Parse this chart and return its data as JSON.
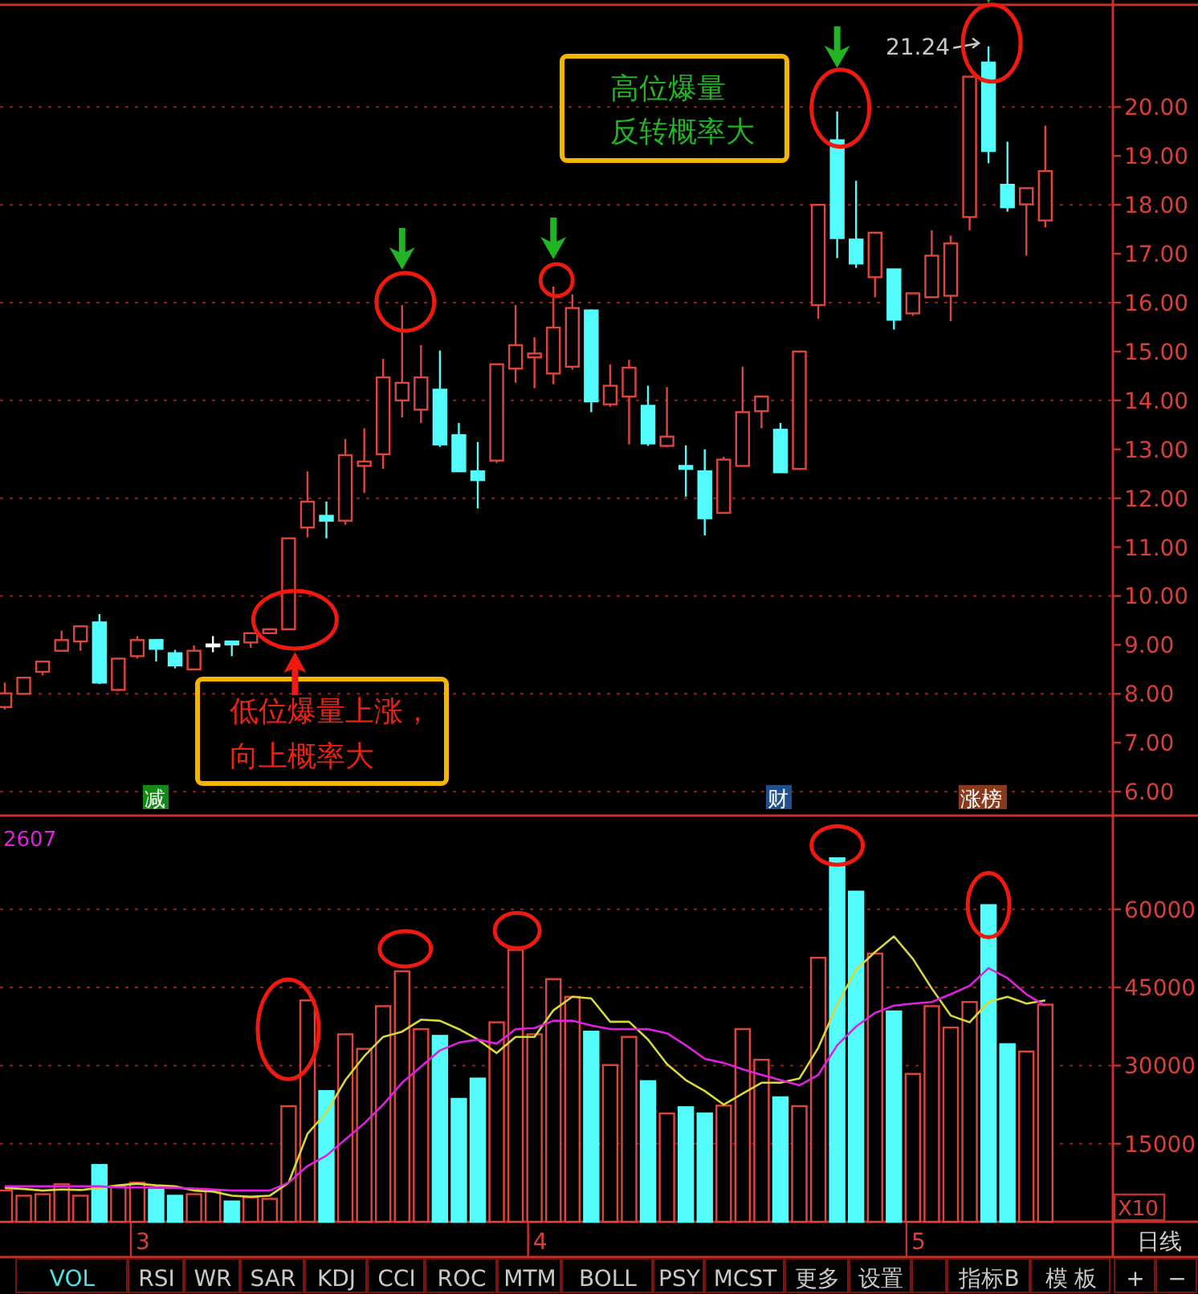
{
  "chart_data": [
    {
      "type": "candlestick",
      "categories": [
        null,
        null,
        null,
        null,
        null,
        null,
        null,
        null,
        null,
        null,
        null,
        null,
        null,
        null,
        null,
        null,
        null,
        null,
        null,
        null,
        null,
        null,
        null,
        null,
        null,
        null,
        null,
        null,
        null,
        null,
        null,
        null,
        null,
        null,
        null,
        null,
        null,
        null,
        null,
        null,
        null,
        null,
        null,
        null,
        null,
        null,
        null,
        null,
        null,
        null,
        null,
        null,
        null,
        null,
        null,
        null
      ],
      "ohlc": [
        [
          7.73,
          8.23,
          7.68,
          8.01
        ],
        [
          8.0,
          8.35,
          7.98,
          8.33
        ],
        [
          8.45,
          8.67,
          8.38,
          8.66
        ],
        [
          8.88,
          9.29,
          8.86,
          9.1
        ],
        [
          9.07,
          9.38,
          8.88,
          9.38
        ],
        [
          9.46,
          9.63,
          8.2,
          8.23
        ],
        [
          8.08,
          8.72,
          8.06,
          8.72
        ],
        [
          8.77,
          9.18,
          8.72,
          9.1
        ],
        [
          9.1,
          9.12,
          8.66,
          8.92
        ],
        [
          8.83,
          8.9,
          8.52,
          8.58
        ],
        [
          8.5,
          8.99,
          8.48,
          8.88
        ],
        [
          9.01,
          9.18,
          8.85,
          9.01
        ],
        [
          9.07,
          9.09,
          8.77,
          9.01
        ],
        [
          9.05,
          9.24,
          8.94,
          9.24
        ],
        [
          9.24,
          9.34,
          9.22,
          9.32
        ],
        [
          9.32,
          11.18,
          9.3,
          11.18
        ],
        [
          11.4,
          12.55,
          11.2,
          11.93
        ],
        [
          11.64,
          11.93,
          11.18,
          11.54
        ],
        [
          11.54,
          13.21,
          11.46,
          12.88
        ],
        [
          12.66,
          13.43,
          12.11,
          12.75
        ],
        [
          12.9,
          14.85,
          12.6,
          14.47
        ],
        [
          14.0,
          15.95,
          13.65,
          14.36
        ],
        [
          13.81,
          15.13,
          13.54,
          14.47
        ],
        [
          14.22,
          15.02,
          13.05,
          13.1
        ],
        [
          13.29,
          13.54,
          12.55,
          12.55
        ],
        [
          12.55,
          13.15,
          11.79,
          12.37
        ],
        [
          12.77,
          14.74,
          12.72,
          14.74
        ],
        [
          14.65,
          15.95,
          14.36,
          15.13
        ],
        [
          14.88,
          15.29,
          14.25,
          14.96
        ],
        [
          14.55,
          16.33,
          14.33,
          15.49
        ],
        [
          14.69,
          16.17,
          14.63,
          15.89
        ],
        [
          15.84,
          15.86,
          13.76,
          13.98
        ],
        [
          13.92,
          14.74,
          13.87,
          14.3
        ],
        [
          14.08,
          14.83,
          13.1,
          14.67
        ],
        [
          13.89,
          14.3,
          13.07,
          13.12
        ],
        [
          13.07,
          14.27,
          13.05,
          13.26
        ],
        [
          12.66,
          13.08,
          12.03,
          12.6
        ],
        [
          12.55,
          13.0,
          11.24,
          11.59
        ],
        [
          11.7,
          12.85,
          11.68,
          12.79
        ],
        [
          12.66,
          14.69,
          12.66,
          13.76
        ],
        [
          13.78,
          14.1,
          13.43,
          14.08
        ],
        [
          13.4,
          13.54,
          12.53,
          12.53
        ],
        [
          12.6,
          15.0,
          12.6,
          15.0
        ],
        [
          15.95,
          18.0,
          15.67,
          18.0
        ],
        [
          19.32,
          19.91,
          16.91,
          17.32
        ],
        [
          17.29,
          18.49,
          16.71,
          16.8
        ],
        [
          16.52,
          17.43,
          16.11,
          17.43
        ],
        [
          16.68,
          16.68,
          15.45,
          15.65
        ],
        [
          15.78,
          16.19,
          15.73,
          16.19
        ],
        [
          16.11,
          17.48,
          16.11,
          16.96
        ],
        [
          16.14,
          17.37,
          15.62,
          17.21
        ],
        [
          17.75,
          20.62,
          17.48,
          20.62
        ],
        [
          20.91,
          21.24,
          18.85,
          19.1
        ],
        [
          18.41,
          19.29,
          17.86,
          17.95
        ],
        [
          18.01,
          18.36,
          16.96,
          18.34
        ],
        [
          17.68,
          19.62,
          17.54,
          18.69
        ]
      ],
      "colors": [
        "#e0453c",
        "#e0453c",
        "#e0453c",
        "#e0453c",
        "#e0453c",
        "#54fcfc",
        "#e0453c",
        "#e0453c",
        "#54fcfc",
        "#54fcfc",
        "#e0453c",
        "#ffffff",
        "#54fcfc",
        "#e0453c",
        "#e0453c",
        "#e0453c",
        "#e0453c",
        "#54fcfc",
        "#e0453c",
        "#e0453c",
        "#e0453c",
        "#e0453c",
        "#e0453c",
        "#54fcfc",
        "#54fcfc",
        "#54fcfc",
        "#e0453c",
        "#e0453c",
        "#e0453c",
        "#e0453c",
        "#e0453c",
        "#54fcfc",
        "#e0453c",
        "#e0453c",
        "#54fcfc",
        "#e0453c",
        "#54fcfc",
        "#54fcfc",
        "#e0453c",
        "#e0453c",
        "#e0453c",
        "#54fcfc",
        "#e0453c",
        "#e0453c",
        "#54fcfc",
        "#54fcfc",
        "#e0453c",
        "#54fcfc",
        "#e0453c",
        "#e0453c",
        "#e0453c",
        "#e0453c",
        "#54fcfc",
        "#54fcfc",
        "#e0453c",
        "#e0453c"
      ],
      "ylim": [
        5.51,
        22.09
      ],
      "yticks": [
        {
          "value": 6,
          "label": "6.00"
        },
        {
          "value": 7,
          "label": "7.00"
        },
        {
          "value": 8,
          "label": "8.00"
        },
        {
          "value": 9,
          "label": "9.00"
        },
        {
          "value": 10,
          "label": "10.00"
        },
        {
          "value": 11,
          "label": "11.00"
        },
        {
          "value": 12,
          "label": "12.00"
        },
        {
          "value": 13,
          "label": "13.00"
        },
        {
          "value": 14,
          "label": "14.00"
        },
        {
          "value": 15,
          "label": "15.00"
        },
        {
          "value": 16,
          "label": "16.00"
        },
        {
          "value": 17,
          "label": "17.00"
        },
        {
          "value": 18,
          "label": "18.00"
        },
        {
          "value": 19,
          "label": "19.00"
        },
        {
          "value": 20,
          "label": "20.00"
        }
      ],
      "grid": "y",
      "tick_labels": "y",
      "annotations": [
        "21.24",
        "高位爆量",
        "反转概率大",
        "低位爆量上涨，",
        "向上概率大",
        "减",
        "财",
        "涨榜"
      ]
    },
    {
      "type": "bar",
      "categories": [
        null,
        null,
        null,
        null,
        null,
        null,
        null,
        "3",
        null,
        null,
        null,
        null,
        null,
        null,
        null,
        null,
        null,
        null,
        null,
        null,
        null,
        null,
        null,
        null,
        null,
        null,
        null,
        null,
        "4",
        null,
        null,
        null,
        null,
        null,
        null,
        null,
        null,
        null,
        null,
        null,
        null,
        null,
        null,
        null,
        null,
        null,
        null,
        null,
        "5",
        null,
        null,
        null,
        null,
        null,
        null,
        null
      ],
      "series": [
        {
          "values": [
            6000,
            5000,
            5300,
            7200,
            5000,
            10900,
            6800,
            7500,
            6200,
            5000,
            5300,
            6000,
            3900,
            4700,
            4400,
            22200,
            42500,
            25100,
            36000,
            33200,
            41400,
            48100,
            37000,
            35700,
            23600,
            27500,
            38300,
            52200,
            36000,
            46600,
            43200,
            36500,
            30100,
            35500,
            27000,
            20800,
            22000,
            20800,
            22300,
            37000,
            31100,
            23900,
            22200,
            50700,
            69800,
            63400,
            51500,
            40400,
            28400,
            41400,
            37300,
            42200,
            60800,
            34100,
            32700,
            41700
          ],
          "colors": [
            "#e0453c",
            "#e0453c",
            "#e0453c",
            "#e0453c",
            "#e0453c",
            "#54fcfc",
            "#e0453c",
            "#e0453c",
            "#54fcfc",
            "#54fcfc",
            "#e0453c",
            "#e0453c",
            "#54fcfc",
            "#e0453c",
            "#e0453c",
            "#e0453c",
            "#e0453c",
            "#54fcfc",
            "#e0453c",
            "#e0453c",
            "#e0453c",
            "#e0453c",
            "#e0453c",
            "#54fcfc",
            "#54fcfc",
            "#54fcfc",
            "#e0453c",
            "#e0453c",
            "#e0453c",
            "#e0453c",
            "#e0453c",
            "#54fcfc",
            "#e0453c",
            "#e0453c",
            "#54fcfc",
            "#e0453c",
            "#54fcfc",
            "#54fcfc",
            "#e0453c",
            "#e0453c",
            "#e0453c",
            "#54fcfc",
            "#e0453c",
            "#e0453c",
            "#54fcfc",
            "#54fcfc",
            "#e0453c",
            "#54fcfc",
            "#e0453c",
            "#e0453c",
            "#e0453c",
            "#e0453c",
            "#54fcfc",
            "#54fcfc",
            "#e0453c",
            "#e0453c"
          ]
        },
        {
          "type": "line",
          "color": "#d8d83a",
          "values": [
            6500,
            6300,
            6000,
            6200,
            6100,
            6500,
            7000,
            7300,
            7000,
            6800,
            6000,
            5800,
            5000,
            4800,
            5000,
            7500,
            16900,
            21000,
            27200,
            31800,
            35500,
            36500,
            38800,
            38600,
            37000,
            35000,
            32400,
            35500,
            35500,
            40600,
            43200,
            42900,
            38400,
            38400,
            35000,
            30300,
            27200,
            25100,
            22500,
            24600,
            26700,
            26700,
            27500,
            33400,
            41700,
            48400,
            51800,
            54800,
            50500,
            44800,
            39600,
            38300,
            42200,
            43200,
            41900,
            42500
          ]
        },
        {
          "type": "line",
          "color": "#e020e0",
          "values": [
            6800,
            6800,
            6800,
            6800,
            6800,
            6800,
            6600,
            6600,
            6600,
            6500,
            6400,
            6200,
            6000,
            6000,
            6000,
            7500,
            10700,
            12700,
            15800,
            18900,
            22500,
            26700,
            29800,
            32900,
            34400,
            35000,
            34200,
            37000,
            37200,
            38600,
            38600,
            37700,
            37000,
            37000,
            37000,
            36200,
            33900,
            31300,
            30500,
            29300,
            28200,
            27200,
            26200,
            28200,
            33900,
            37500,
            40100,
            41500,
            41900,
            42200,
            43700,
            45300,
            48700,
            46800,
            43700,
            41500
          ]
        }
      ],
      "ylim": [
        0,
        78000
      ],
      "yticks": [
        15000,
        30000,
        45000,
        60000
      ],
      "grid": "y",
      "annotations": [
        "2607",
        "X10",
        "日线",
        "VOL",
        "RSI",
        "WR",
        "SAR",
        "KDJ",
        "CCI",
        "ROC",
        "MTM",
        "BOLL",
        "PSY",
        "MCST",
        "更多",
        "设置",
        "指标B",
        "模 板",
        "+",
        "−"
      ]
    }
  ]
}
